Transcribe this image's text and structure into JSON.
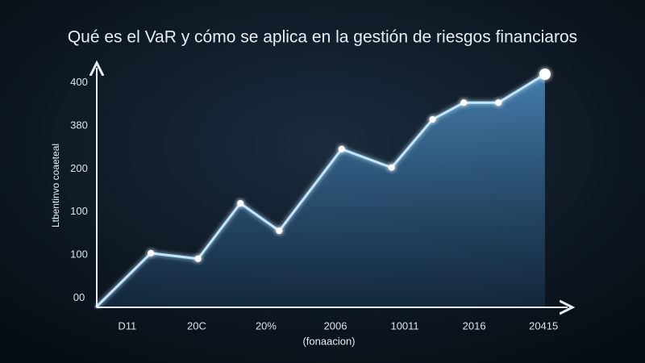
{
  "chart_data": {
    "type": "line",
    "title": "Qué es el VaR y cómo se aplica en la gestión de riesgos financiaros",
    "y_label": "Ltbentinvo coaeteal",
    "x_label": "(fonaacion)",
    "color": "#bfe6ff",
    "x": [
      -0.44,
      0.34,
      1.02,
      1.63,
      2.19,
      3.09,
      3.81,
      4.4,
      4.85,
      5.35,
      6.02
    ],
    "values": [
      -20,
      104,
      91,
      220,
      156,
      346,
      303,
      415,
      454,
      454,
      520
    ],
    "xlim": [
      -0.44,
      6.3
    ],
    "ylim": [
      -20,
      520
    ],
    "xticks": [
      {
        "value": 0,
        "label": "D11"
      },
      {
        "value": 1,
        "label": "20C"
      },
      {
        "value": 2,
        "label": "20%"
      },
      {
        "value": 3,
        "label": "2006"
      },
      {
        "value": 4,
        "label": "10011"
      },
      {
        "value": 5,
        "label": "2016"
      },
      {
        "value": 6,
        "label": "20415"
      }
    ],
    "yticks": [
      {
        "value": 0,
        "label": "00"
      },
      100,
      {
        "value": 200,
        "label": "100"
      },
      {
        "value": 300,
        "label": "200"
      },
      {
        "value": 400,
        "label": "380"
      },
      {
        "value": 500,
        "label": "400"
      }
    ]
  }
}
